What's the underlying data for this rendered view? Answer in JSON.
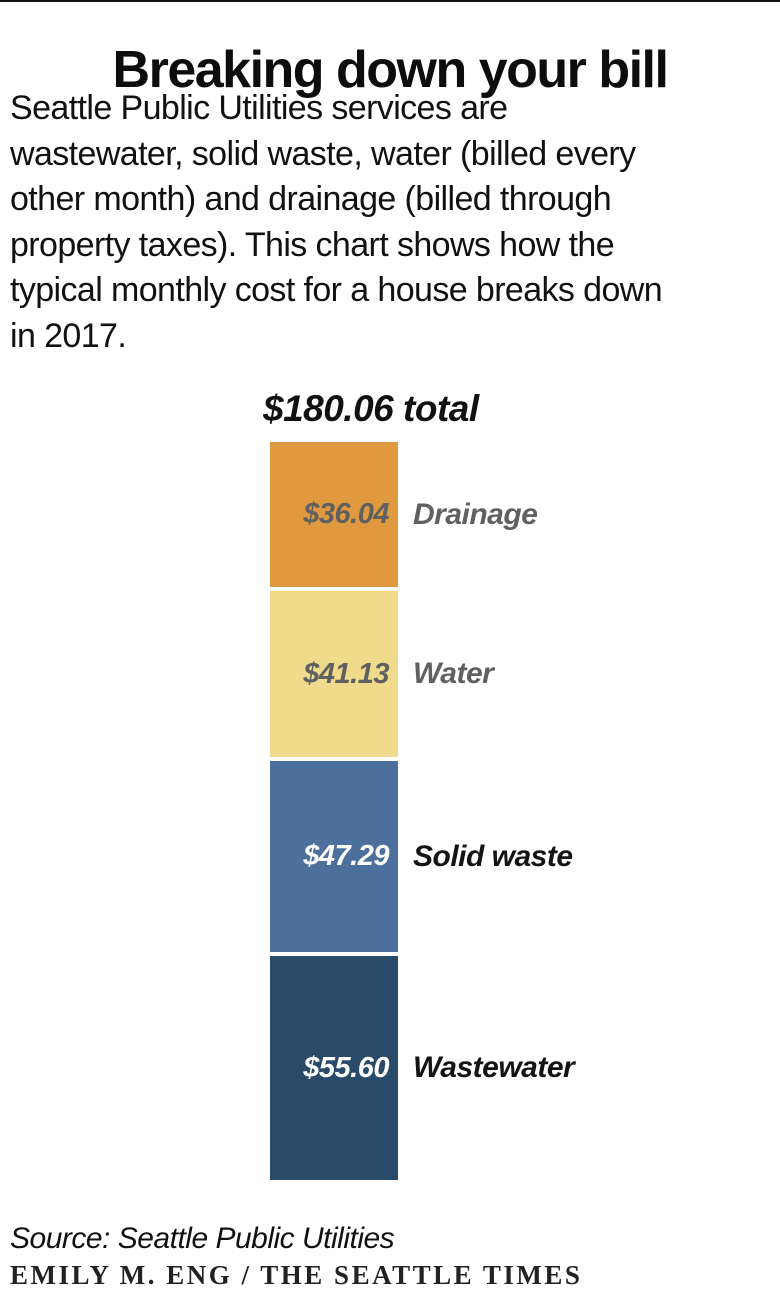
{
  "page": {
    "title": "Breaking down your bill",
    "intro_lines": [
      "Seattle Public Utilities services are",
      "wastewater, solid waste, water (billed every",
      "other month) and drainage (billed through",
      "property taxes). This chart shows how the",
      "typical monthly cost for a house breaks down",
      "in 2017."
    ],
    "source": "Source: Seattle Public Utilities",
    "credit": "EMILY M. ENG / THE SEATTLE TIMES"
  },
  "chart_data": {
    "type": "bar",
    "subtype": "single-stacked-column",
    "title": "$180.06 total",
    "total_value": 180.06,
    "categories": [
      "Drainage",
      "Water",
      "Solid waste",
      "Wastewater"
    ],
    "values": [
      36.04,
      41.13,
      47.29,
      55.6
    ],
    "value_labels": [
      "$36.04",
      "$41.13",
      "$47.29",
      "$55.60"
    ],
    "segments": [
      {
        "label": "Drainage",
        "value": 36.04,
        "value_label": "$36.04",
        "color": "#e0993f",
        "value_text_color": "#606060",
        "label_text_color": "#606060"
      },
      {
        "label": "Water",
        "value": 41.13,
        "value_label": "$41.13",
        "color": "#f0db8d",
        "value_text_color": "#606060",
        "label_text_color": "#606060"
      },
      {
        "label": "Solid waste",
        "value": 47.29,
        "value_label": "$47.29",
        "color": "#4c6f9b",
        "value_text_color": "#ffffff",
        "label_text_color": "#141414"
      },
      {
        "label": "Wastewater",
        "value": 55.6,
        "value_label": "$55.60",
        "color": "#2a4a69",
        "value_text_color": "#ffffff",
        "label_text_color": "#141414"
      }
    ],
    "layout": {
      "value_labels_inside_bar": true,
      "category_labels_right_of_bar": true,
      "gridlines": false,
      "axes": false
    }
  }
}
